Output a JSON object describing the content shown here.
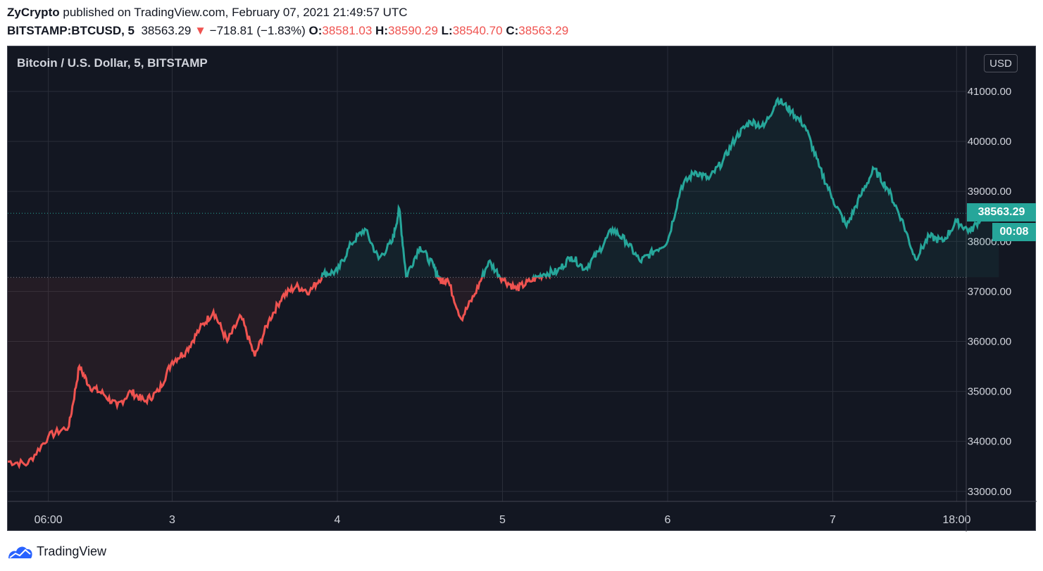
{
  "header": {
    "publisher": "ZyCrypto",
    "published_on": "published on TradingView.com, February 07, 2021 21:49:57 UTC",
    "symbol": "BITSTAMP:BTCUSD, 5",
    "last": "38563.29",
    "change": "−718.81 (−1.83%)",
    "o_label": "O:",
    "o_val": "38581.03",
    "h_label": "H:",
    "h_val": "38590.29",
    "l_label": "L:",
    "l_val": "38540.70",
    "c_label": "C:",
    "c_val": "38563.29"
  },
  "chart_title": "Bitcoin / U.S. Dollar, 5, BITSTAMP",
  "currency": "USD",
  "price_tag": "38563.29",
  "time_tag": "00:08",
  "footer_brand": "TradingView",
  "colors": {
    "up": "#26a69a",
    "down": "#ef5350",
    "bg": "#131722",
    "grid": "#2a2e39",
    "text": "#d1d4dc"
  },
  "chart_data": {
    "type": "line",
    "title": "Bitcoin / U.S. Dollar, 5, BITSTAMP",
    "x_tick_labels": [
      "06:00",
      "3",
      "4",
      "5",
      "6",
      "7",
      "18:00"
    ],
    "y_tick_labels": [
      "33000.00",
      "34000.00",
      "35000.00",
      "36000.00",
      "37000.00",
      "38000.00",
      "39000.00",
      "40000.00",
      "41000.00"
    ],
    "ylim": [
      32800,
      41900
    ],
    "baseline": 37282.1,
    "last_price": 38563.29,
    "grid": true,
    "series": [
      {
        "x": [
          "Feb 2 00:00",
          "Feb 2 03:00",
          "Feb 2 06:00",
          "Feb 2 09:00",
          "Feb 2 10:30",
          "Feb 2 12:00",
          "Feb 2 14:00",
          "Feb 2 16:00",
          "Feb 2 18:00",
          "Feb 2 20:00",
          "Feb 2 22:00",
          "Feb 3 00:00",
          "Feb 3 02:00",
          "Feb 3 04:00",
          "Feb 3 06:00",
          "Feb 3 08:00",
          "Feb 3 10:00",
          "Feb 3 12:00",
          "Feb 3 14:00",
          "Feb 3 16:00",
          "Feb 3 18:00",
          "Feb 3 20:00",
          "Feb 3 22:00",
          "Feb 4 00:00",
          "Feb 4 02:00",
          "Feb 4 04:00",
          "Feb 4 06:00",
          "Feb 4 08:00",
          "Feb 4 09:00",
          "Feb 4 10:00",
          "Feb 4 12:00",
          "Feb 4 14:00",
          "Feb 4 15:00",
          "Feb 4 16:00",
          "Feb 4 18:00",
          "Feb 4 20:00",
          "Feb 4 22:00",
          "Feb 5 00:00",
          "Feb 5 02:00",
          "Feb 5 04:00",
          "Feb 5 06:00",
          "Feb 5 08:00",
          "Feb 5 10:00",
          "Feb 5 12:00",
          "Feb 5 14:00",
          "Feb 5 16:00",
          "Feb 5 18:00",
          "Feb 5 20:00",
          "Feb 5 22:00",
          "Feb 6 00:00",
          "Feb 6 02:00",
          "Feb 6 04:00",
          "Feb 6 06:00",
          "Feb 6 08:00",
          "Feb 6 10:00",
          "Feb 6 12:00",
          "Feb 6 14:00",
          "Feb 6 16:00",
          "Feb 6 18:00",
          "Feb 6 20:00",
          "Feb 6 22:00",
          "Feb 7 00:00",
          "Feb 7 02:00",
          "Feb 7 04:00",
          "Feb 7 06:00",
          "Feb 7 08:00",
          "Feb 7 10:00",
          "Feb 7 12:00",
          "Feb 7 14:00",
          "Feb 7 16:00",
          "Feb 7 18:00",
          "Feb 7 20:00",
          "Feb 7 22:00",
          "Feb 8 00:08"
        ],
        "values": [
          33600,
          33550,
          34100,
          34300,
          35500,
          35100,
          34950,
          34700,
          35000,
          34800,
          35000,
          35600,
          35800,
          36250,
          36600,
          36000,
          36500,
          35700,
          36400,
          36900,
          37100,
          37000,
          37350,
          37400,
          37950,
          38250,
          37650,
          38000,
          38650,
          37300,
          37900,
          37500,
          37200,
          37250,
          36450,
          36950,
          37600,
          37250,
          37050,
          37200,
          37350,
          37400,
          37700,
          37450,
          37800,
          38250,
          38000,
          37600,
          37800,
          38000,
          39100,
          39400,
          39250,
          39600,
          40100,
          40400,
          40300,
          40850,
          40600,
          40300,
          39500,
          38850,
          38300,
          38900,
          39450,
          39050,
          38450,
          37650,
          38100,
          38000,
          38400,
          38200,
          38560,
          38563.29
        ]
      }
    ]
  }
}
